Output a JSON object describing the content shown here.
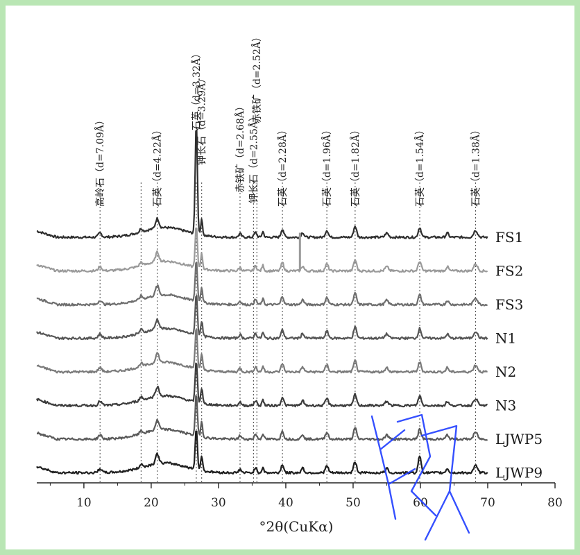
{
  "chart_data": {
    "type": "line",
    "title": "",
    "xlabel": "°2θ(CuKα)",
    "ylabel": "",
    "xlim": [
      3,
      80
    ],
    "x_ticks": [
      10,
      20,
      30,
      40,
      50,
      60,
      70,
      80
    ],
    "grid": false,
    "legend": "none",
    "series": [
      {
        "name": "FS1",
        "color": "#2f2f2f",
        "baseline": 0
      },
      {
        "name": "FS2",
        "color": "#9a9a9a",
        "baseline": 1
      },
      {
        "name": "FS3",
        "color": "#6e6e6e",
        "baseline": 2
      },
      {
        "name": "N1",
        "color": "#555555",
        "baseline": 3
      },
      {
        "name": "N2",
        "color": "#7a7a7a",
        "baseline": 4
      },
      {
        "name": "N3",
        "color": "#3c3c3c",
        "baseline": 5
      },
      {
        "name": "LJWP5",
        "color": "#5a5a5a",
        "baseline": 6
      },
      {
        "name": "LJWP9",
        "color": "#1f1f1f",
        "baseline": 7
      }
    ],
    "peaks": [
      {
        "x": 12.4,
        "label": "高岭石（d=7.09Å）",
        "dashed": true
      },
      {
        "x": 18.5,
        "label": "",
        "dashed": true
      },
      {
        "x": 20.9,
        "label": "石英（d=4.22Å）",
        "dashed": true
      },
      {
        "x": 26.7,
        "label": "石英（d=3.32Å）",
        "dashed": true
      },
      {
        "x": 27.5,
        "label": "钾长石（d=3.29Å）",
        "dashed": true
      },
      {
        "x": 33.2,
        "label": "赤铁矿（d=2.68Å）",
        "dashed": true
      },
      {
        "x": 35.2,
        "label": "钾长石（d=2.55Å）",
        "dashed": true
      },
      {
        "x": 35.7,
        "label": "赤铁矿（d=2.52Å）",
        "dashed": true
      },
      {
        "x": 39.5,
        "label": "石英（d=2.28Å）",
        "dashed": true
      },
      {
        "x": 46.1,
        "label": "石英（d=1.96Å）",
        "dashed": true
      },
      {
        "x": 50.3,
        "label": "石英（d=1.82Å）",
        "dashed": true
      },
      {
        "x": 59.9,
        "label": "石英（d=1.54Å）",
        "dashed": true
      },
      {
        "x": 68.2,
        "label": "石英（d=1.38Å）",
        "dashed": true
      }
    ]
  },
  "watermark": {
    "text": "白虹",
    "color": "#1f3dff"
  }
}
